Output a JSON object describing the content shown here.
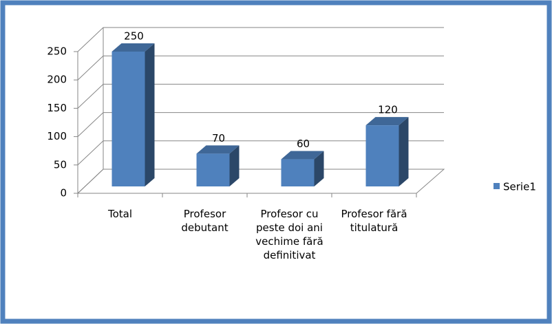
{
  "chart_data": {
    "type": "bar3d",
    "categories": [
      "Total",
      "Profesor debutant",
      "Profesor cu peste doi ani vechime fără definitivat",
      "Profesor fără titulatură"
    ],
    "series": [
      {
        "name": "Serie1",
        "color": "#4f81bd",
        "values": [
          250,
          70,
          60,
          120
        ]
      }
    ],
    "ylim": [
      0,
      250
    ],
    "yticks": [
      0,
      50,
      100,
      150,
      200,
      250
    ],
    "grid": true,
    "legend": "right"
  }
}
